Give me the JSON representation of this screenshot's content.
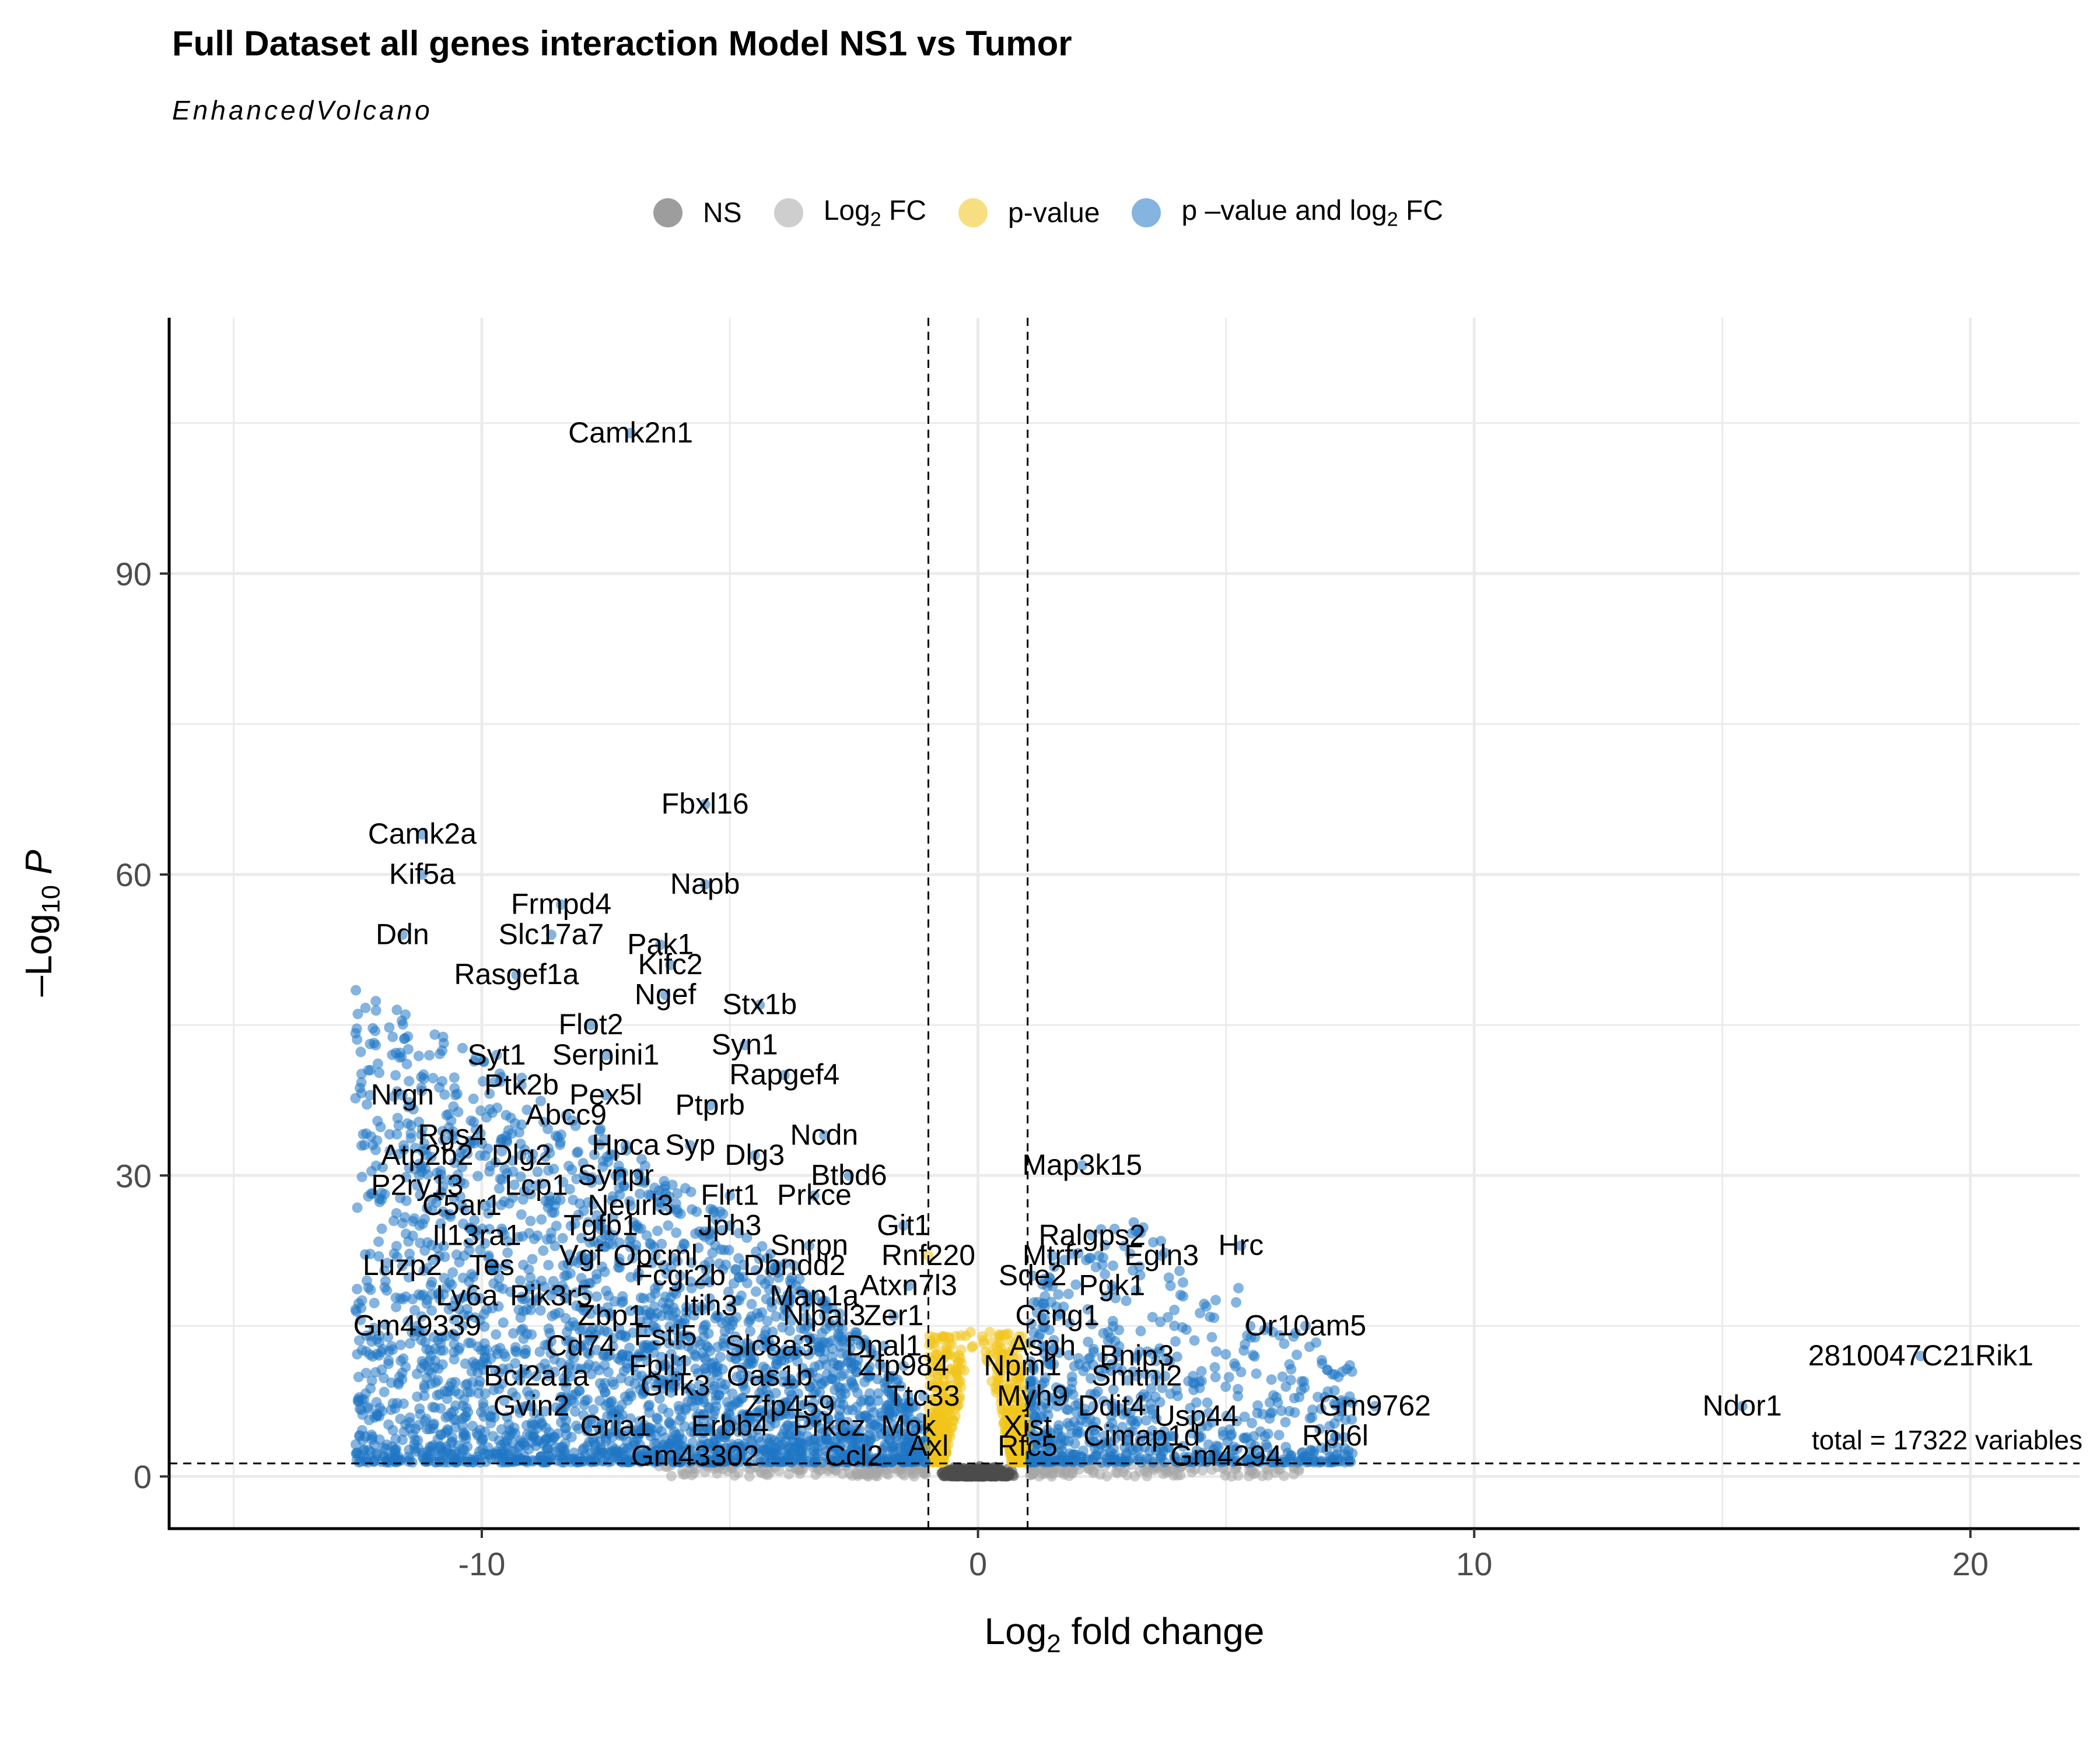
{
  "title": "Full Dataset all genes interaction Model NS1 vs Tumor",
  "subtitle": "EnhancedVolcano",
  "caption": "total = 17322 variables",
  "legend": [
    {
      "label": "NS",
      "sub": "",
      "after": "",
      "color": "#4d4d4d"
    },
    {
      "label": "Log",
      "sub": "2",
      "after": " FC",
      "color": "#a6a6a6"
    },
    {
      "label": "p-value",
      "sub": "",
      "after": "",
      "color": "#f0c419"
    },
    {
      "label": "p –value and log",
      "sub": "2",
      "after": " FC",
      "color": "#1f77c4"
    }
  ],
  "chart_data": {
    "type": "scatter",
    "xlabel": "Log2 fold change",
    "ylabel": "–Log10 P",
    "xlim": [
      -16.3,
      22.2
    ],
    "ylim": [
      -5.2,
      115.5
    ],
    "x_ticks": [
      -10,
      0,
      10,
      20
    ],
    "y_ticks": [
      0,
      30,
      60,
      90
    ],
    "grid": true,
    "fc_cutoff": 1,
    "p_cutoff_neglog10": 1.3,
    "legend_position": "top",
    "labeled_genes": [
      {
        "name": "Camk2n1",
        "x": -7.0,
        "y": 104
      },
      {
        "name": "Fbxl16",
        "x": -5.5,
        "y": 67
      },
      {
        "name": "Camk2a",
        "x": -11.2,
        "y": 64
      },
      {
        "name": "Kif5a",
        "x": -11.2,
        "y": 60
      },
      {
        "name": "Napb",
        "x": -5.5,
        "y": 59
      },
      {
        "name": "Frmpd4",
        "x": -8.4,
        "y": 57
      },
      {
        "name": "Ddn",
        "x": -11.6,
        "y": 54
      },
      {
        "name": "Slc17a7",
        "x": -8.6,
        "y": 54
      },
      {
        "name": "Pak1",
        "x": -6.4,
        "y": 53
      },
      {
        "name": "Kifc2",
        "x": -6.2,
        "y": 51
      },
      {
        "name": "Rasgef1a",
        "x": -9.3,
        "y": 50
      },
      {
        "name": "Ngef",
        "x": -6.3,
        "y": 48
      },
      {
        "name": "Stx1b",
        "x": -4.4,
        "y": 47
      },
      {
        "name": "Flot2",
        "x": -7.8,
        "y": 45
      },
      {
        "name": "Syn1",
        "x": -4.7,
        "y": 43
      },
      {
        "name": "Syt1",
        "x": -9.7,
        "y": 42
      },
      {
        "name": "Serpini1",
        "x": -7.5,
        "y": 42
      },
      {
        "name": "Rapgef4",
        "x": -3.9,
        "y": 40
      },
      {
        "name": "Ptk2b",
        "x": -9.2,
        "y": 39
      },
      {
        "name": "Pex5l",
        "x": -7.5,
        "y": 38
      },
      {
        "name": "Nrgn",
        "x": -11.6,
        "y": 38
      },
      {
        "name": "Ptprb",
        "x": -5.4,
        "y": 37
      },
      {
        "name": "Abcc9",
        "x": -8.3,
        "y": 36
      },
      {
        "name": "Ncdn",
        "x": -3.1,
        "y": 34
      },
      {
        "name": "Rgs4",
        "x": -10.6,
        "y": 34
      },
      {
        "name": "Hpca",
        "x": -7.1,
        "y": 33
      },
      {
        "name": "Syp",
        "x": -5.8,
        "y": 33
      },
      {
        "name": "Dlg2",
        "x": -9.2,
        "y": 32
      },
      {
        "name": "Dlg3",
        "x": -4.5,
        "y": 32
      },
      {
        "name": "Atp2b2",
        "x": -11.1,
        "y": 32
      },
      {
        "name": "Map3k15",
        "x": 2.1,
        "y": 31
      },
      {
        "name": "Btbd6",
        "x": -2.6,
        "y": 30
      },
      {
        "name": "Synpr",
        "x": -7.3,
        "y": 30
      },
      {
        "name": "P2ry13",
        "x": -11.3,
        "y": 29
      },
      {
        "name": "Lcp1",
        "x": -8.9,
        "y": 29
      },
      {
        "name": "Prkce",
        "x": -3.3,
        "y": 28
      },
      {
        "name": "Flrt1",
        "x": -5.0,
        "y": 28
      },
      {
        "name": "Neurl3",
        "x": -7.0,
        "y": 27
      },
      {
        "name": "C5ar1",
        "x": -10.4,
        "y": 27
      },
      {
        "name": "Git1",
        "x": -1.5,
        "y": 25
      },
      {
        "name": "Tgfb1",
        "x": -7.6,
        "y": 25
      },
      {
        "name": "Jph3",
        "x": -5.0,
        "y": 25
      },
      {
        "name": "Ralgps2",
        "x": 2.3,
        "y": 24
      },
      {
        "name": "Hrc",
        "x": 5.3,
        "y": 23
      },
      {
        "name": "Il13ra1",
        "x": -10.1,
        "y": 24
      },
      {
        "name": "Snrpn",
        "x": -3.4,
        "y": 23
      },
      {
        "name": "Rnf220",
        "x": -1.0,
        "y": 22
      },
      {
        "name": "Opcml",
        "x": -6.5,
        "y": 22
      },
      {
        "name": "Vgf",
        "x": -8.0,
        "y": 22
      },
      {
        "name": "Mtrfr",
        "x": 1.5,
        "y": 22
      },
      {
        "name": "Egln3",
        "x": 3.7,
        "y": 22
      },
      {
        "name": "Luzp2",
        "x": -11.6,
        "y": 21
      },
      {
        "name": "Tes",
        "x": -9.8,
        "y": 21
      },
      {
        "name": "Dbndd2",
        "x": -3.7,
        "y": 21
      },
      {
        "name": "Fcgr2b",
        "x": -6.0,
        "y": 20
      },
      {
        "name": "Sde2",
        "x": 1.1,
        "y": 20
      },
      {
        "name": "Pgk1",
        "x": 2.7,
        "y": 19
      },
      {
        "name": "Atxn7l3",
        "x": -1.4,
        "y": 19
      },
      {
        "name": "Ly6a",
        "x": -10.3,
        "y": 18
      },
      {
        "name": "Pik3r5",
        "x": -8.6,
        "y": 18
      },
      {
        "name": "Map1a",
        "x": -3.3,
        "y": 18
      },
      {
        "name": "Itih3",
        "x": -5.4,
        "y": 17
      },
      {
        "name": "Ccng1",
        "x": 1.6,
        "y": 16
      },
      {
        "name": "Zbp1",
        "x": -7.4,
        "y": 16
      },
      {
        "name": "Nipal3",
        "x": -3.1,
        "y": 16
      },
      {
        "name": "Zer1",
        "x": -1.7,
        "y": 16
      },
      {
        "name": "Gm49339",
        "x": -11.3,
        "y": 15
      },
      {
        "name": "Or10am5",
        "x": 6.6,
        "y": 15
      },
      {
        "name": "Fstl5",
        "x": -6.3,
        "y": 14
      },
      {
        "name": "Slc8a3",
        "x": -4.2,
        "y": 13
      },
      {
        "name": "Dnal1",
        "x": -1.9,
        "y": 13
      },
      {
        "name": "Asph",
        "x": 1.3,
        "y": 13
      },
      {
        "name": "Cd74",
        "x": -8.0,
        "y": 13
      },
      {
        "name": "Bnip3",
        "x": 3.2,
        "y": 12
      },
      {
        "name": "2810047C21Rik1",
        "x": 19.0,
        "y": 12
      },
      {
        "name": "Fbll1",
        "x": -6.4,
        "y": 11
      },
      {
        "name": "Zfp984",
        "x": -1.5,
        "y": 11
      },
      {
        "name": "Npm1",
        "x": 0.9,
        "y": 11
      },
      {
        "name": "Oas1b",
        "x": -4.2,
        "y": 10
      },
      {
        "name": "Bcl2a1a",
        "x": -8.9,
        "y": 10
      },
      {
        "name": "Smtnl2",
        "x": 3.2,
        "y": 10
      },
      {
        "name": "Grik3",
        "x": -6.1,
        "y": 9
      },
      {
        "name": "Ttc33",
        "x": -1.1,
        "y": 8
      },
      {
        "name": "Myh9",
        "x": 1.1,
        "y": 8
      },
      {
        "name": "Zfp459",
        "x": -3.8,
        "y": 7
      },
      {
        "name": "Gm9762",
        "x": 8.0,
        "y": 7
      },
      {
        "name": "Ndor1",
        "x": 15.4,
        "y": 7
      },
      {
        "name": "Gvin2",
        "x": -9.0,
        "y": 7
      },
      {
        "name": "Ddit4",
        "x": 2.7,
        "y": 7
      },
      {
        "name": "Usp44",
        "x": 4.4,
        "y": 6
      },
      {
        "name": "Gria1",
        "x": -7.3,
        "y": 5
      },
      {
        "name": "Erbb4",
        "x": -5.0,
        "y": 5
      },
      {
        "name": "Prkcz",
        "x": -3.0,
        "y": 5
      },
      {
        "name": "Mok",
        "x": -1.4,
        "y": 5
      },
      {
        "name": "Xist",
        "x": 1.0,
        "y": 5
      },
      {
        "name": "Rpl6l",
        "x": 7.2,
        "y": 4
      },
      {
        "name": "Cimap1d",
        "x": 3.3,
        "y": 4
      },
      {
        "name": "Rfc5",
        "x": 1.0,
        "y": 3
      },
      {
        "name": "Axl",
        "x": -1.0,
        "y": 3
      },
      {
        "name": "Ccl2",
        "x": -2.5,
        "y": 2
      },
      {
        "name": "Gm43302",
        "x": -5.7,
        "y": 2
      },
      {
        "name": "Gm4294",
        "x": 5.0,
        "y": 2
      }
    ]
  }
}
